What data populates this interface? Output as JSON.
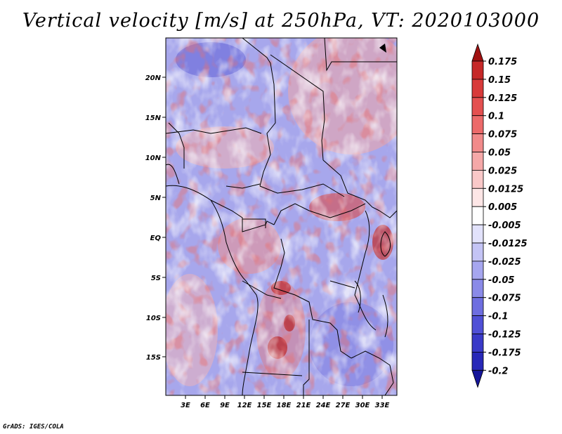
{
  "title": "Vertical velocity [m/s] at 250hPa, VT: 2020103000",
  "footer": "GrADS: IGES/COLA",
  "map": {
    "lat_labels": [
      "20N",
      "15N",
      "10N",
      "5N",
      "EQ",
      "5S",
      "10S",
      "15S"
    ],
    "lon_labels": [
      "3E",
      "6E",
      "9E",
      "12E",
      "15E",
      "18E",
      "21E",
      "24E",
      "27E",
      "30E",
      "33E"
    ]
  },
  "colorbar": {
    "labels": [
      "0.175",
      "0.15",
      "0.125",
      "0.1",
      "0.075",
      "0.05",
      "0.025",
      "0.0125",
      "0.005",
      "-0.005",
      "-0.0125",
      "-0.025",
      "-0.05",
      "-0.075",
      "-0.1",
      "-0.125",
      "-0.175",
      "-0.2"
    ],
    "colors": [
      "#b01818",
      "#c62828",
      "#d83a3a",
      "#e45050",
      "#ec6a6a",
      "#f18a8a",
      "#f5a8a8",
      "#f9c8c8",
      "#fde6e6",
      "#ffffff",
      "#e2e2fb",
      "#c4c4f5",
      "#a6a6ef",
      "#8a8ae8",
      "#6e6ee0",
      "#5050d6",
      "#3a3ac8",
      "#2828b8",
      "#1818a0"
    ],
    "top_arrow_color": "#a01010",
    "bottom_arrow_color": "#15159a"
  }
}
